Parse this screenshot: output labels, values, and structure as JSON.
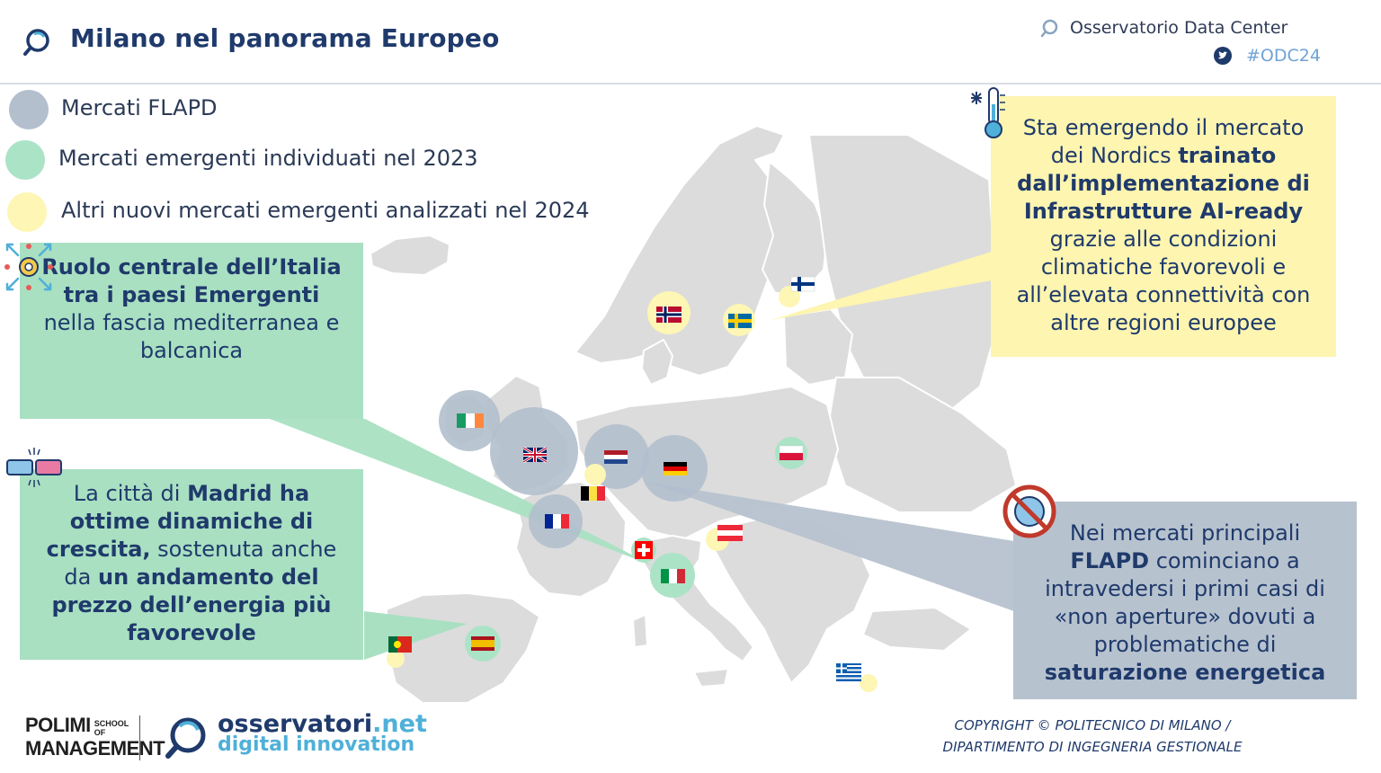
{
  "header": {
    "title": "Milano nel panorama Europeo",
    "brand": "Osservatorio Data Center",
    "hashtag": "#ODC24"
  },
  "legend": [
    {
      "label": "Mercati FLAPD",
      "color": "#b3bfcd"
    },
    {
      "label": "Mercati emergenti individuati nel 2023",
      "color": "#abe3c6"
    },
    {
      "label": "Altri nuovi mercati emergenti analizzati nel 2024",
      "color": "#fdf6b4"
    }
  ],
  "callouts": {
    "italy": {
      "parts": [
        {
          "t": "Ruolo centrale dell’Italia tra i paesi Emergenti",
          "b": true
        },
        {
          "t": " nella fascia mediterranea e balcanica",
          "b": false
        }
      ]
    },
    "madrid": {
      "parts": [
        {
          "t": "La città di ",
          "b": false
        },
        {
          "t": "Madrid ha ottime dinamiche di crescita,",
          "b": true
        },
        {
          "t": " sostenuta anche da ",
          "b": false
        },
        {
          "t": "un andamento del prezzo dell’energia più favorevole",
          "b": true
        }
      ]
    },
    "nordics": {
      "parts": [
        {
          "t": "Sta emergendo il mercato dei Nordics ",
          "b": false
        },
        {
          "t": "trainato dall’implementazione di Infrastrutture AI-ready",
          "b": true
        },
        {
          "t": " grazie alle condizioni climatiche favorevoli e all’elevata connettività con altre regioni europee",
          "b": false
        }
      ]
    },
    "flapd": {
      "parts": [
        {
          "t": "Nei mercati principali ",
          "b": false
        },
        {
          "t": "FLAPD",
          "b": true
        },
        {
          "t": " cominciano a intravedersi i primi casi di «non aperture» dovuti a problematiche di ",
          "b": false
        },
        {
          "t": "saturazione energetica",
          "b": true
        }
      ]
    }
  },
  "markets": [
    {
      "country": "Ireland",
      "group": "FLAPD",
      "flag": "ie"
    },
    {
      "country": "United Kingdom",
      "group": "FLAPD",
      "flag": "gb"
    },
    {
      "country": "Netherlands",
      "group": "FLAPD",
      "flag": "nl"
    },
    {
      "country": "Germany",
      "group": "FLAPD",
      "flag": "de"
    },
    {
      "country": "France",
      "group": "FLAPD",
      "flag": "fr"
    },
    {
      "country": "Belgium",
      "group": "2024",
      "flag": "be"
    },
    {
      "country": "Norway",
      "group": "2024",
      "flag": "no"
    },
    {
      "country": "Sweden",
      "group": "2024",
      "flag": "se"
    },
    {
      "country": "Finland",
      "group": "2024",
      "flag": "fi"
    },
    {
      "country": "Poland",
      "group": "2023",
      "flag": "pl"
    },
    {
      "country": "Austria",
      "group": "2024",
      "flag": "at"
    },
    {
      "country": "Switzerland",
      "group": "2023",
      "flag": "ch"
    },
    {
      "country": "Italy",
      "group": "2023",
      "flag": "it"
    },
    {
      "country": "Spain",
      "group": "2023",
      "flag": "es"
    },
    {
      "country": "Portugal",
      "group": "2024",
      "flag": "pt"
    },
    {
      "country": "Greece",
      "group": "2024",
      "flag": "gr"
    }
  ],
  "footer": {
    "copyright_1": "COPYRIGHT © POLITECNICO DI MILANO /",
    "copyright_2": "DIPARTIMENTO DI INGEGNERIA GESTIONALE",
    "polimi_1": "POLIMI",
    "polimi_small_1": "SCHOOL",
    "polimi_small_2": "OF",
    "polimi_2": "MANAGEMENT",
    "obs_name": "osservatori",
    "obs_tld": ".net",
    "obs_tagline": "digital innovation"
  }
}
